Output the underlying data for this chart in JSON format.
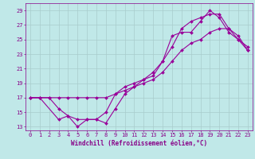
{
  "title": "",
  "xlabel": "Windchill (Refroidissement éolien,°C)",
  "ylabel": "",
  "bg_color": "#c0e8e8",
  "grid_color": "#a8cccc",
  "line_color": "#990099",
  "marker": "D",
  "markersize": 2.0,
  "linewidth": 0.8,
  "xlim": [
    -0.5,
    23.5
  ],
  "ylim": [
    12.5,
    30.0
  ],
  "xticks": [
    0,
    1,
    2,
    3,
    4,
    5,
    6,
    7,
    8,
    9,
    10,
    11,
    12,
    13,
    14,
    15,
    16,
    17,
    18,
    19,
    20,
    21,
    22,
    23
  ],
  "yticks": [
    13,
    15,
    17,
    19,
    21,
    23,
    25,
    27,
    29
  ],
  "series1_x": [
    0,
    1,
    3,
    4,
    5,
    6,
    7,
    8,
    9,
    10,
    11,
    12,
    13,
    14,
    15,
    16,
    17,
    18,
    19,
    20,
    21,
    22,
    23
  ],
  "series1_y": [
    17,
    17,
    14,
    14.5,
    13,
    14,
    14,
    13.5,
    15.5,
    17.5,
    18.5,
    19.5,
    20,
    22,
    25.5,
    26.0,
    26.0,
    27.5,
    29,
    28,
    26,
    25,
    23.5
  ],
  "series2_x": [
    0,
    1,
    2,
    3,
    4,
    5,
    6,
    7,
    8,
    9,
    10,
    11,
    12,
    13,
    14,
    15,
    16,
    17,
    18,
    19,
    20,
    21,
    22,
    23
  ],
  "series2_y": [
    17,
    17,
    17,
    15.5,
    14.5,
    14.0,
    14.0,
    14.0,
    15.0,
    17.5,
    18.5,
    19.0,
    19.5,
    20.5,
    22,
    24,
    26.5,
    27.5,
    28.0,
    28.5,
    28.5,
    26.5,
    25.0,
    24.0
  ],
  "series3_x": [
    0,
    1,
    2,
    3,
    4,
    5,
    6,
    7,
    8,
    9,
    10,
    11,
    12,
    13,
    14,
    15,
    16,
    17,
    18,
    19,
    20,
    21,
    22,
    23
  ],
  "series3_y": [
    17,
    17,
    17,
    17,
    17,
    17,
    17,
    17,
    17,
    17.5,
    18,
    18.5,
    19,
    19.5,
    20.5,
    22,
    23.5,
    24.5,
    25.0,
    26.0,
    26.5,
    26.5,
    25.5,
    23.5
  ],
  "font_color": "#880088",
  "font_size_tick": 5.0,
  "font_size_label": 5.5
}
